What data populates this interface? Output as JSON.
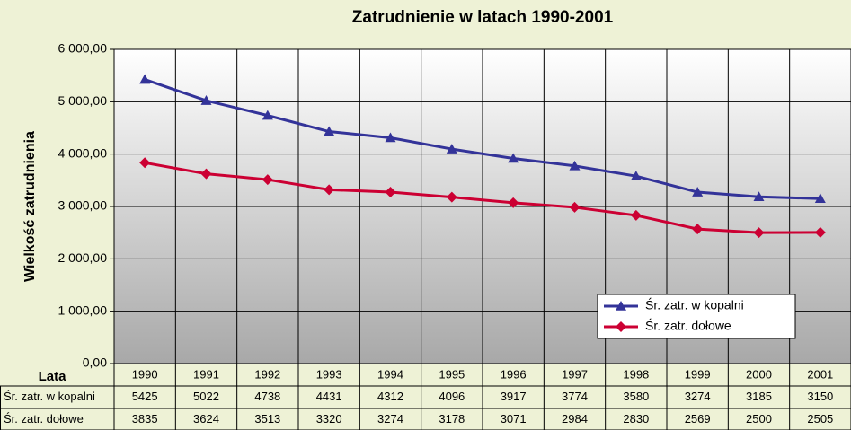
{
  "chart_data": {
    "type": "line",
    "title": "Zatrudnienie w latach 1990-2001",
    "y_label": "Wielkość zatrudnienia",
    "table_header": "Lata",
    "categories": [
      "1990",
      "1991",
      "1992",
      "1993",
      "1994",
      "1995",
      "1996",
      "1997",
      "1998",
      "1999",
      "2000",
      "2001"
    ],
    "series": [
      {
        "name": "Śr. zatr. w kopalni",
        "color": "#333399",
        "marker": "triangle",
        "values": [
          5425,
          5022,
          4738,
          4431,
          4312,
          4096,
          3917,
          3774,
          3580,
          3274,
          3185,
          3150
        ]
      },
      {
        "name": "Śr. zatr. dołowe",
        "color": "#cc0033",
        "marker": "diamond",
        "values": [
          3835,
          3624,
          3513,
          3320,
          3274,
          3178,
          3071,
          2984,
          2830,
          2569,
          2500,
          2505
        ]
      }
    ],
    "ylim": [
      0,
      6000
    ],
    "yticks": [
      {
        "value": 0,
        "label": "0,00"
      },
      {
        "value": 1000,
        "label": "1 000,00"
      },
      {
        "value": 2000,
        "label": "2 000,00"
      },
      {
        "value": 3000,
        "label": "3 000,00"
      },
      {
        "value": 4000,
        "label": "4 000,00"
      },
      {
        "value": 5000,
        "label": "5 000,00"
      },
      {
        "value": 6000,
        "label": "6 000,00"
      }
    ],
    "grid": true,
    "legend": "lower right"
  }
}
